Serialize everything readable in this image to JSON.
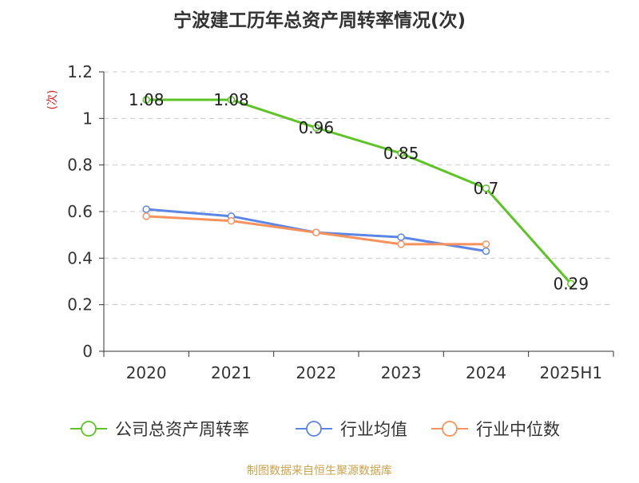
{
  "chart_data": {
    "type": "line",
    "title": "宁波建工历年总资产周转率情况(次)",
    "ylabel": "(次)",
    "xlabel": "",
    "categories": [
      "2020",
      "2021",
      "2022",
      "2023",
      "2024",
      "2025H1"
    ],
    "ylim": [
      0,
      1.2
    ],
    "yticks": [
      "0",
      "0.2",
      "0.4",
      "0.6",
      "0.8",
      "1",
      "1.2"
    ],
    "grid": true,
    "legend_position": "bottom",
    "series": [
      {
        "name": "公司总资产周转率",
        "color": "#5cc424",
        "values": [
          1.08,
          1.08,
          0.96,
          0.85,
          0.7,
          0.29
        ],
        "labels": [
          "1.08",
          "1.08",
          "0.96",
          "0.85",
          "0.7",
          "0.29"
        ]
      },
      {
        "name": "行业均值",
        "color": "#5b86e5",
        "values": [
          0.61,
          0.58,
          0.51,
          0.49,
          0.43,
          null
        ]
      },
      {
        "name": "行业中位数",
        "color": "#f7925c",
        "values": [
          0.58,
          0.56,
          0.51,
          0.46,
          0.46,
          null
        ]
      }
    ],
    "source": "制图数据来自恒生聚源数据库"
  },
  "colors": {
    "title": "#333333",
    "ylabel": "#e02020",
    "axis": "#333333",
    "grid": "#cccccc",
    "source": "#c9a24a"
  }
}
